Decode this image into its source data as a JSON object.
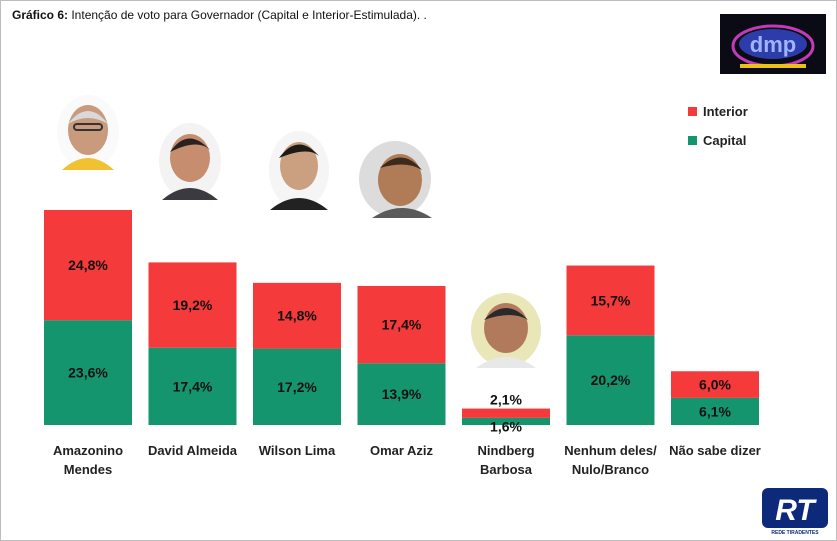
{
  "title": {
    "label": "Gráfico 6:",
    "text": " Intenção de voto para Governador (Capital e Interior-Estimulada). ."
  },
  "logos": {
    "top": "dmp",
    "bottom": "RT",
    "bottom_caption": "REDE TIRADENTES"
  },
  "chart_data": {
    "type": "bar",
    "stacked": true,
    "categories": [
      [
        "Amazonino",
        "Mendes"
      ],
      [
        "David Almeida"
      ],
      [
        "Wilson Lima"
      ],
      [
        "Omar Aziz"
      ],
      [
        "Nindberg",
        "Barbosa"
      ],
      [
        "Nenhum deles/",
        "Nulo/Branco"
      ],
      [
        "Não sabe dizer"
      ]
    ],
    "series": [
      {
        "name": "Capital",
        "color": "#14956d",
        "values": [
          23.6,
          17.4,
          17.2,
          13.9,
          1.6,
          20.2,
          6.1
        ],
        "labels": [
          "23,6%",
          "17,4%",
          "17,2%",
          "13,9%",
          "1,6%",
          "20,2%",
          "6,1%"
        ]
      },
      {
        "name": "Interior",
        "color": "#f43a3b",
        "values": [
          24.8,
          19.2,
          14.8,
          17.4,
          2.1,
          15.7,
          6.0
        ],
        "labels": [
          "24,8%",
          "19,2%",
          "14,8%",
          "17,4%",
          "2,1%",
          "15,7%",
          "6,0%"
        ]
      }
    ],
    "ylim": [
      0,
      48.4
    ],
    "grid": false,
    "legend": "top-right"
  }
}
